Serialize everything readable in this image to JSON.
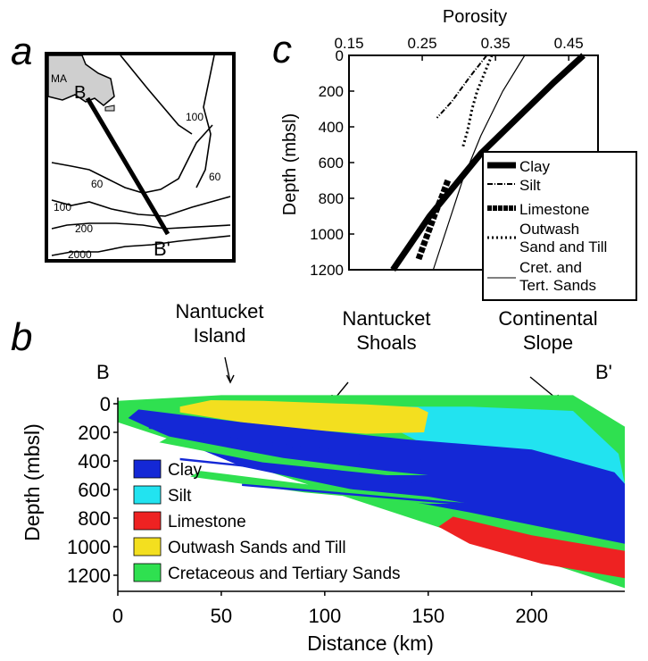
{
  "panel_labels": {
    "a": "a",
    "b": "b",
    "c": "c"
  },
  "map": {
    "state_label": "MA",
    "point_start": "B",
    "point_end": "B'",
    "contour_labels": [
      "100",
      "60",
      "60",
      "100",
      "200",
      "2000"
    ]
  },
  "annotations": {
    "nantucket_island": [
      "Nantucket",
      "Island"
    ],
    "nantucket_shoals": [
      "Nantucket",
      "Shoals"
    ],
    "continental_slope": [
      "Continental",
      "Slope"
    ],
    "section_start": "B",
    "section_end": "B'"
  },
  "colors": {
    "clay": "#1428d6",
    "silt": "#22e3f0",
    "limestone": "#ee2222",
    "outwash": "#f3df1f",
    "cretaceous": "#2fe050"
  },
  "chart_data": [
    {
      "type": "line",
      "panel": "c",
      "xlabel": "Porosity",
      "ylabel": "Depth (mbsl)",
      "x_axis_position": "top",
      "y_inverted": true,
      "xlim": [
        0.15,
        0.49
      ],
      "ylim": [
        0,
        1200
      ],
      "xticks": [
        "0.15",
        "0.25",
        "0.35",
        "0.45"
      ],
      "yticks": [
        "0",
        "200",
        "400",
        "600",
        "800",
        "1000",
        "1200"
      ],
      "legend_position": "right",
      "series": [
        {
          "name": "Clay",
          "style": "thick",
          "x": [
            0.47,
            0.43,
            0.38,
            0.33,
            0.29,
            0.26,
            0.235,
            0.21
          ],
          "y": [
            0,
            150,
            350,
            550,
            750,
            900,
            1050,
            1200
          ]
        },
        {
          "name": "Silt",
          "style": "dash-dot",
          "x": [
            0.338,
            0.315,
            0.29,
            0.27
          ],
          "y": [
            0,
            120,
            260,
            350
          ]
        },
        {
          "name": "Limestone",
          "style": "square-markers",
          "x": [
            0.285,
            0.277,
            0.268,
            0.26,
            0.252,
            0.245
          ],
          "y": [
            700,
            790,
            880,
            970,
            1060,
            1140
          ]
        },
        {
          "name": "Outwash\nSand and Till",
          "style": "dotted",
          "x": [
            0.345,
            0.335,
            0.325,
            0.318,
            0.312,
            0.305
          ],
          "y": [
            0,
            100,
            200,
            300,
            420,
            520
          ]
        },
        {
          "name": "Cret. and\nTert. Sands",
          "style": "thin",
          "x": [
            0.39,
            0.36,
            0.33,
            0.305,
            0.285,
            0.265
          ],
          "y": [
            0,
            200,
            450,
            700,
            950,
            1200
          ]
        }
      ]
    },
    {
      "type": "area",
      "panel": "b",
      "xlabel": "Distance (km)",
      "ylabel": "Depth (mbsl)",
      "y_inverted": true,
      "xlim": [
        0,
        245
      ],
      "ylim": [
        0,
        1300
      ],
      "xticks": [
        "0",
        "50",
        "100",
        "150",
        "200"
      ],
      "yticks": [
        "0",
        "200",
        "400",
        "600",
        "800",
        "1000",
        "1200"
      ],
      "legend_position": "bottom-left",
      "legend": [
        "Clay",
        "Silt",
        "Limestone",
        "Outwash Sands and Till",
        "Cretaceous and Tertiary Sands"
      ],
      "units": [
        {
          "name": "Cretaceous and Tertiary Sands",
          "color_key": "cretaceous",
          "points": [
            [
              0,
              -20
            ],
            [
              50,
              -60
            ],
            [
              220,
              -60
            ],
            [
              245,
              160
            ],
            [
              245,
              1290
            ],
            [
              0,
              130
            ]
          ]
        },
        {
          "name": "Silt",
          "color_key": "silt",
          "points": [
            [
              130,
              20
            ],
            [
              170,
              20
            ],
            [
              220,
              50
            ],
            [
              242,
              350
            ],
            [
              245,
              560
            ],
            [
              200,
              560
            ],
            [
              150,
              300
            ],
            [
              130,
              150
            ]
          ]
        },
        {
          "name": "Outwash Sands and Till",
          "color_key": "outwash",
          "points": [
            [
              30,
              20
            ],
            [
              45,
              -25
            ],
            [
              70,
              -20
            ],
            [
              120,
              5
            ],
            [
              145,
              25
            ],
            [
              150,
              60
            ],
            [
              148,
              200
            ],
            [
              120,
              210
            ],
            [
              90,
              180
            ],
            [
              60,
              130
            ],
            [
              30,
              60
            ]
          ]
        },
        {
          "name": "Clay",
          "color_key": "clay",
          "points": [
            [
              10,
              40
            ],
            [
              60,
              130
            ],
            [
              140,
              250
            ],
            [
              200,
              320
            ],
            [
              240,
              480
            ],
            [
              245,
              560
            ],
            [
              245,
              980
            ],
            [
              170,
              760
            ],
            [
              140,
              680
            ],
            [
              100,
              560
            ],
            [
              60,
              440
            ],
            [
              20,
              200
            ],
            [
              5,
              100
            ]
          ]
        },
        {
          "name": "Cretaceous and Tertiary Sands",
          "color_key": "cretaceous",
          "points": [
            [
              25,
              230
            ],
            [
              80,
              380
            ],
            [
              130,
              470
            ],
            [
              150,
              500
            ],
            [
              130,
              500
            ],
            [
              70,
              410
            ],
            [
              20,
              270
            ]
          ]
        },
        {
          "name": "Cretaceous and Tertiary Sands",
          "color_key": "cretaceous",
          "points": [
            [
              40,
              470
            ],
            [
              100,
              580
            ],
            [
              150,
              650
            ],
            [
              170,
              700
            ],
            [
              150,
              700
            ],
            [
              90,
              620
            ],
            [
              35,
              510
            ]
          ]
        },
        {
          "name": "Limestone",
          "color_key": "limestone",
          "points": [
            [
              162,
              790
            ],
            [
              200,
              920
            ],
            [
              245,
              1030
            ],
            [
              245,
              1220
            ],
            [
              205,
              1120
            ],
            [
              170,
              980
            ],
            [
              155,
              860
            ]
          ]
        }
      ]
    }
  ]
}
